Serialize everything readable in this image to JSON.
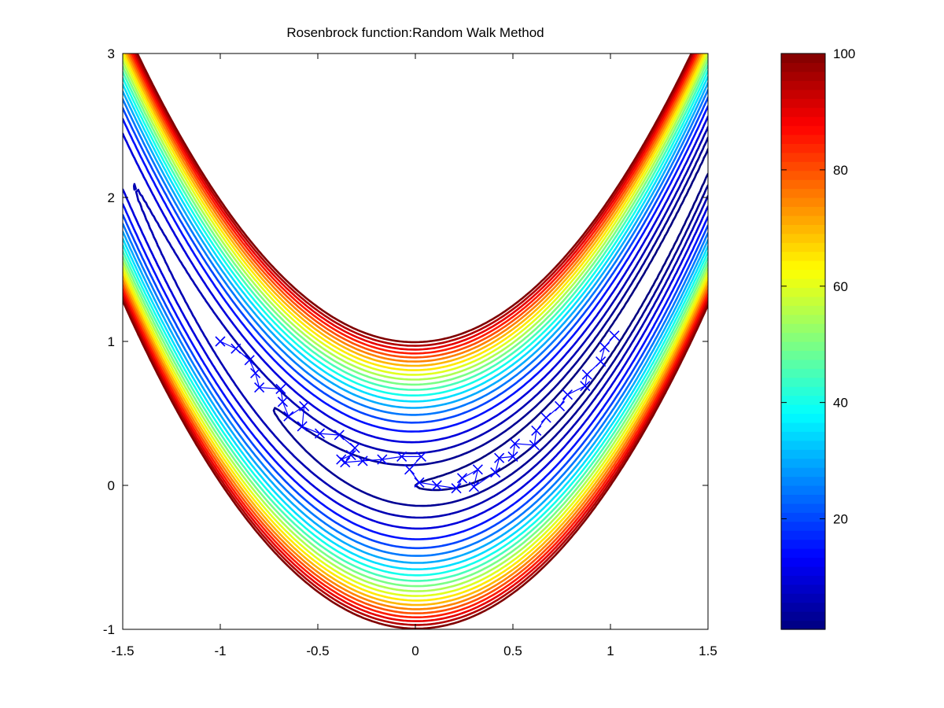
{
  "chart_data": [
    {
      "type": "contour",
      "title": "Rosenbrock function:Random Walk Method",
      "xlabel": "",
      "ylabel": "",
      "xlim": [
        -1.5,
        1.5
      ],
      "ylim": [
        -1,
        3
      ],
      "xticks": [
        "-1.5",
        "-1",
        "-0.5",
        "0",
        "0.5",
        "1",
        "1.5"
      ],
      "yticks": [
        "-1",
        "0",
        "1",
        "2",
        "3"
      ],
      "grid": false,
      "colormap": "jet",
      "contour_levels": [
        1,
        3,
        6,
        10,
        15,
        20,
        25,
        30,
        35,
        40,
        45,
        50,
        55,
        60,
        65,
        70,
        75,
        80,
        85,
        90,
        95,
        100
      ],
      "series": [
        {
          "type": "line-with-markers",
          "marker": "x",
          "color": "#0000ff",
          "x": [
            -1.0,
            -0.92,
            -0.85,
            -0.82,
            -0.8,
            -0.69,
            -0.68,
            -0.65,
            -0.57,
            -0.58,
            -0.49,
            -0.39,
            -0.31,
            -0.33,
            -0.38,
            -0.36,
            -0.27,
            -0.17,
            -0.07,
            0.03,
            -0.03,
            0.02,
            0.11,
            0.21,
            0.24,
            0.32,
            0.3,
            0.41,
            0.43,
            0.5,
            0.51,
            0.61,
            0.62,
            0.67,
            0.74,
            0.78,
            0.87,
            0.88,
            0.95,
            0.97,
            1.02
          ],
          "y": [
            1.0,
            0.95,
            0.87,
            0.78,
            0.68,
            0.67,
            0.58,
            0.48,
            0.55,
            0.41,
            0.36,
            0.35,
            0.26,
            0.21,
            0.18,
            0.16,
            0.17,
            0.18,
            0.2,
            0.2,
            0.11,
            0.02,
            -0.0,
            -0.02,
            0.05,
            0.11,
            -0.01,
            0.09,
            0.19,
            0.2,
            0.29,
            0.28,
            0.38,
            0.47,
            0.55,
            0.63,
            0.69,
            0.77,
            0.86,
            0.96,
            1.04
          ]
        }
      ],
      "colorbar": {
        "min": 1,
        "max": 100,
        "ticks": [
          "20",
          "40",
          "60",
          "80",
          "100"
        ]
      }
    }
  ]
}
